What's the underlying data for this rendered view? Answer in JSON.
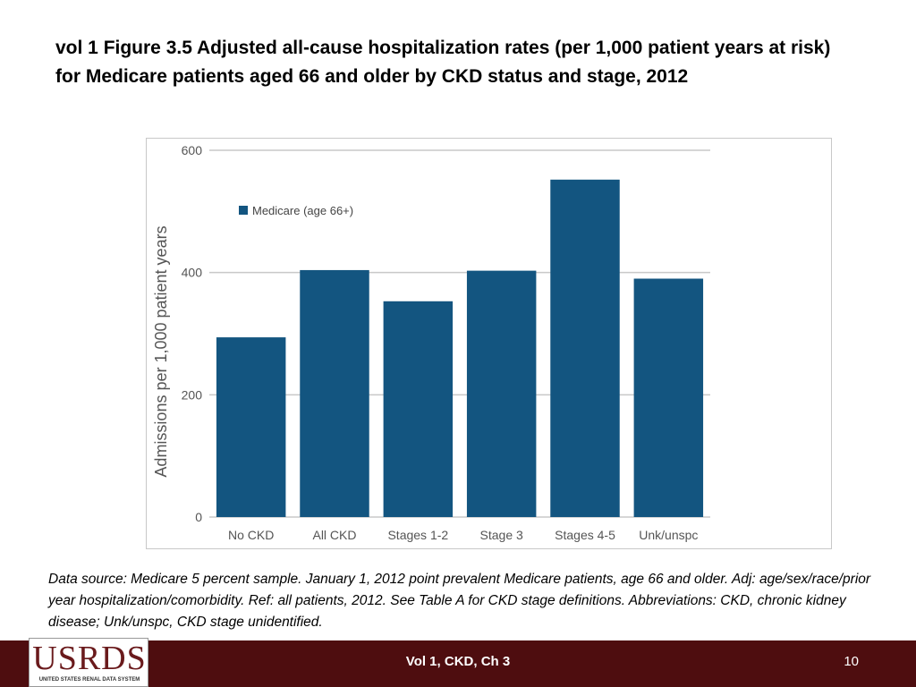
{
  "slide": {
    "title": "vol 1 Figure 3.5  Adjusted all-cause hospitalization rates (per 1,000 patient years at risk) for Medicare patients aged 66 and older by CKD status and stage, 2012",
    "note": "Data source: Medicare 5 percent sample. January 1, 2012 point prevalent Medicare patients, age 66 and older. Adj: age/sex/race/prior year hospitalization/comorbidity. Ref: all patients, 2012. See Table A for CKD stage definitions. Abbreviations: CKD, chronic kidney disease; Unk/unspc, CKD stage unidentified."
  },
  "footer": {
    "logo_text": "USRDS",
    "logo_subtext": "UNITED STATES RENAL DATA SYSTEM",
    "center_text": "Vol 1, CKD, Ch 3",
    "page_number": "10"
  },
  "colors": {
    "bar": "#135580",
    "grid": "#c8c8c8",
    "footer": "#4e0d0f"
  },
  "chart_data": {
    "type": "bar",
    "title": "",
    "xlabel": "",
    "ylabel": "Admissions per 1,000 patient years",
    "categories": [
      "No CKD",
      "All CKD",
      "Stages 1-2",
      "Stage 3",
      "Stages 4-5",
      "Unk/unspc"
    ],
    "series": [
      {
        "name": "Medicare (age 66+)",
        "values": [
          294,
          404,
          353,
          403,
          552,
          390
        ]
      }
    ],
    "ylim": [
      0,
      600
    ],
    "yticks": [
      0,
      200,
      400,
      600
    ],
    "grid": true,
    "legend_position": "top-left"
  }
}
